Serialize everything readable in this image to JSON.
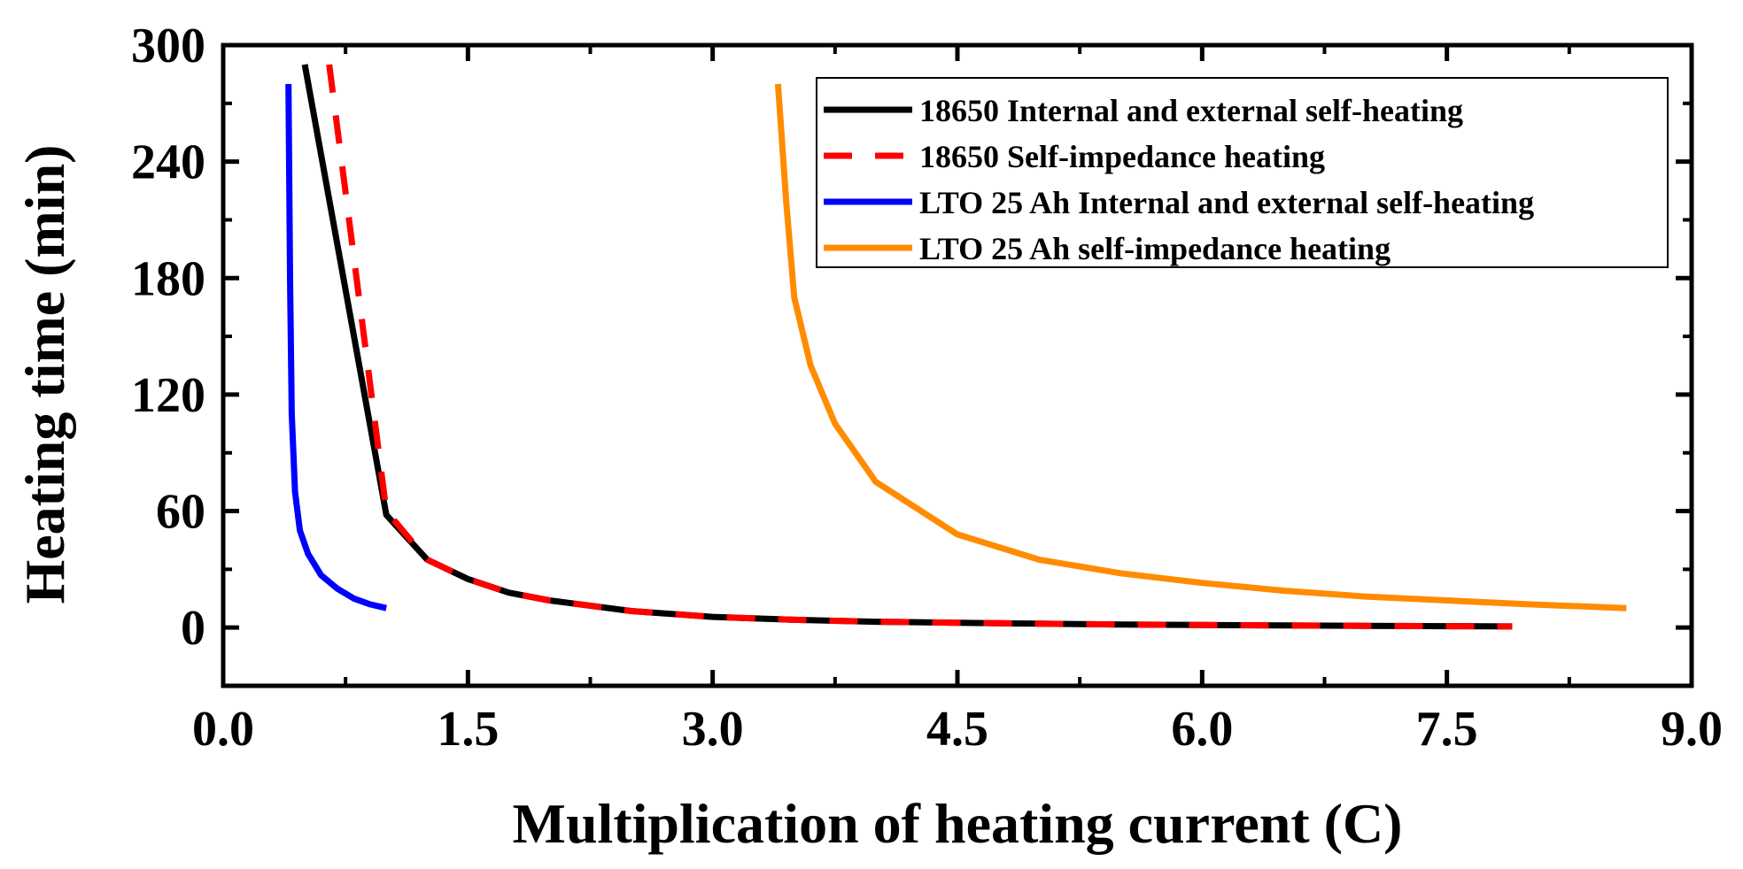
{
  "chart_data": {
    "type": "line",
    "title": "",
    "xlabel": "Multiplication of heating current (C)",
    "ylabel": "Heating time (min)",
    "xlim": [
      0,
      9
    ],
    "ylim": [
      -30,
      300
    ],
    "xticks": [
      0,
      1.5,
      3,
      4.5,
      6,
      7.5,
      9
    ],
    "xtick_labels": [
      "0.0",
      "1.5",
      "3.0",
      "4.5",
      "6.0",
      "7.5",
      "9.0"
    ],
    "yticks": [
      0,
      60,
      120,
      180,
      240,
      300
    ],
    "ytick_labels": [
      "0",
      "60",
      "120",
      "180",
      "240",
      "300"
    ],
    "grid": false,
    "legend_position": "top-right",
    "series": [
      {
        "name": "18650 Internal and external self-heating",
        "color": "#000000",
        "dash": "solid",
        "x": [
          0.5,
          1.0,
          1.25,
          1.5,
          1.75,
          2.0,
          2.5,
          3.0,
          3.5,
          4.0,
          4.5,
          5.0,
          5.5,
          6.0,
          6.5,
          7.0,
          7.5,
          7.9
        ],
        "y": [
          290,
          58,
          35,
          25,
          18,
          14,
          8.5,
          5.5,
          4,
          3,
          2.5,
          2,
          1.6,
          1.3,
          1.1,
          0.9,
          0.7,
          0.6
        ]
      },
      {
        "name": "18650 Self-impedance heating",
        "color": "#ff0000",
        "dash": "dashed",
        "x": [
          0.65,
          1.0,
          1.25,
          1.5,
          1.75,
          2.0,
          2.5,
          3.0,
          3.5,
          4.0,
          4.5,
          5.0,
          5.5,
          6.0,
          6.5,
          7.0,
          7.5,
          7.9
        ],
        "y": [
          290,
          60,
          35,
          25,
          18,
          14,
          8.5,
          5.5,
          4,
          3,
          2.5,
          2,
          1.6,
          1.3,
          1.1,
          0.9,
          0.7,
          0.6
        ]
      },
      {
        "name": "LTO 25 Ah Internal and external self-heating",
        "color": "#0000ff",
        "dash": "solid",
        "x": [
          0.4,
          0.41,
          0.42,
          0.44,
          0.47,
          0.52,
          0.6,
          0.7,
          0.8,
          0.9,
          1.0
        ],
        "y": [
          280,
          180,
          110,
          70,
          50,
          38,
          27,
          20,
          15,
          12,
          10
        ]
      },
      {
        "name": "LTO 25 Ah self-impedance heating",
        "color": "#ff8c00",
        "dash": "solid",
        "x": [
          3.4,
          3.45,
          3.5,
          3.6,
          3.75,
          4.0,
          4.5,
          5.0,
          5.5,
          6.0,
          6.5,
          7.0,
          7.5,
          8.0,
          8.6
        ],
        "y": [
          280,
          220,
          170,
          135,
          105,
          75,
          48,
          35,
          28,
          23,
          19,
          16,
          14,
          12,
          10
        ]
      }
    ]
  }
}
